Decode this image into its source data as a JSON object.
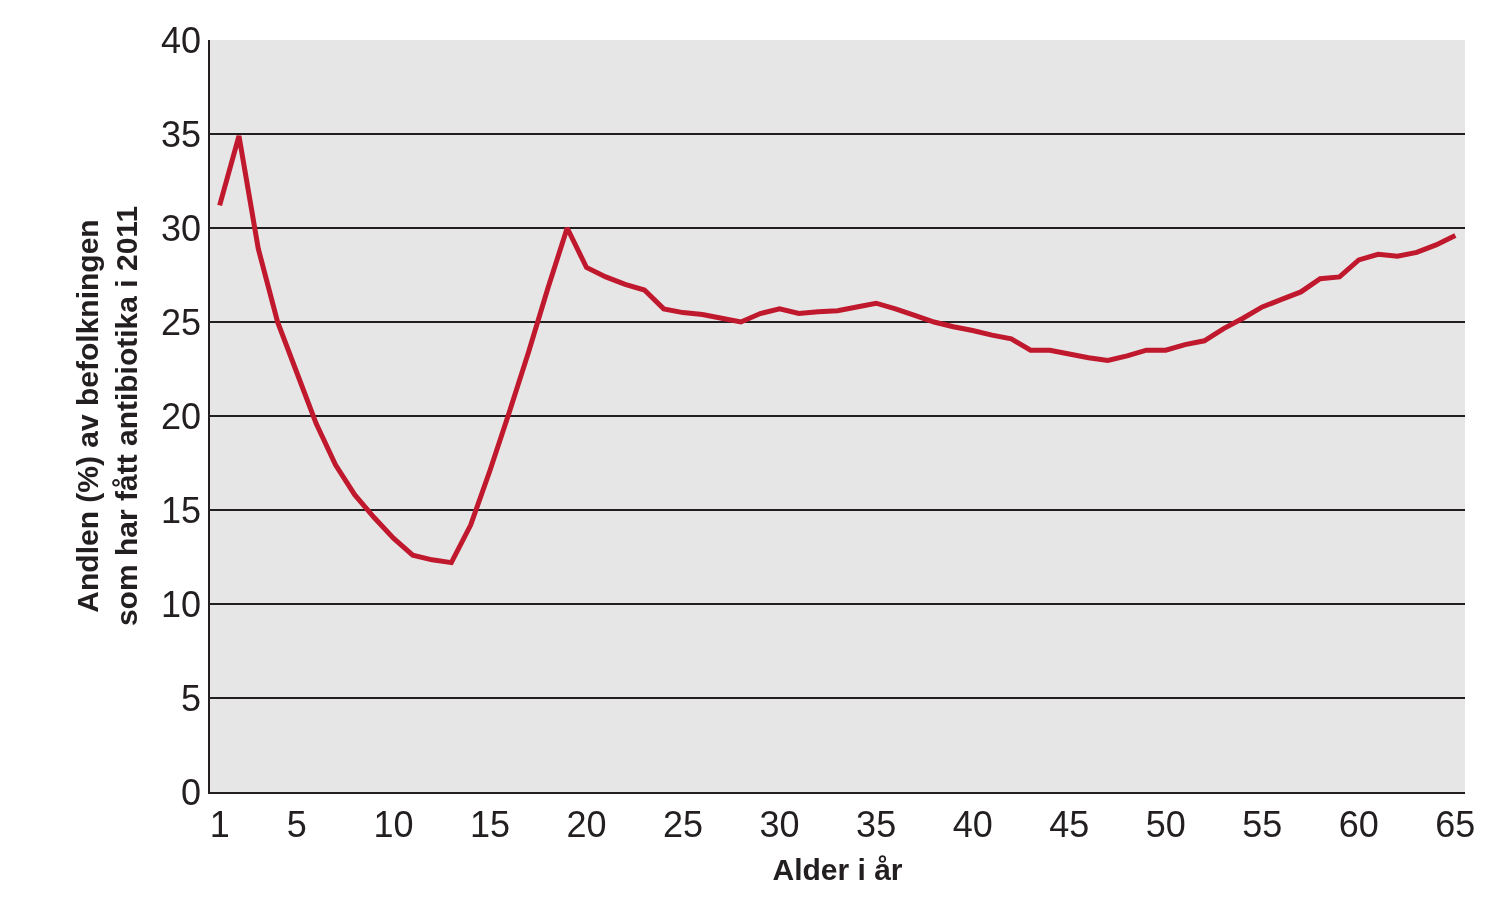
{
  "chart_data": {
    "type": "line",
    "xlabel": "Alder i år",
    "ylabel": "Andlen (%) av befolkningen\nsom har fått antibiotika i 2011",
    "x": [
      1,
      2,
      3,
      4,
      5,
      6,
      7,
      8,
      9,
      10,
      11,
      12,
      13,
      14,
      15,
      16,
      17,
      18,
      19,
      20,
      21,
      22,
      23,
      24,
      25,
      26,
      27,
      28,
      29,
      30,
      31,
      32,
      33,
      34,
      35,
      36,
      37,
      38,
      39,
      40,
      41,
      42,
      43,
      44,
      45,
      46,
      47,
      48,
      49,
      50,
      51,
      52,
      53,
      54,
      55,
      56,
      57,
      58,
      59,
      60,
      61,
      62,
      63,
      64,
      65
    ],
    "series": [
      {
        "color": "#c0182d",
        "values": [
          31.2,
          34.9,
          28.9,
          25.0,
          22.3,
          19.6,
          17.4,
          15.8,
          14.6,
          13.5,
          12.6,
          12.35,
          12.2,
          14.2,
          17.1,
          20.2,
          23.4,
          26.8,
          30.0,
          27.9,
          27.4,
          27.0,
          26.7,
          25.7,
          25.5,
          25.4,
          25.2,
          25.0,
          25.45,
          25.7,
          25.45,
          25.55,
          25.6,
          25.8,
          26.0,
          25.7,
          25.35,
          25.0,
          24.75,
          24.55,
          24.3,
          24.1,
          23.5,
          23.5,
          23.3,
          23.1,
          22.95,
          23.2,
          23.5,
          23.5,
          23.8,
          24.0,
          24.65,
          25.2,
          25.8,
          26.2,
          26.6,
          27.3,
          27.4,
          28.3,
          28.6,
          28.5,
          28.7,
          29.1,
          29.6
        ]
      }
    ],
    "xlim": [
      0.5,
      65.5
    ],
    "ylim": [
      0,
      40
    ],
    "xticks": [
      1,
      5,
      10,
      15,
      20,
      25,
      30,
      35,
      40,
      45,
      50,
      55,
      60,
      65
    ],
    "yticks": [
      0,
      5,
      10,
      15,
      20,
      25,
      30,
      35,
      40
    ],
    "grid": "y",
    "legend": false,
    "marker": "none",
    "line_style": "solid"
  }
}
